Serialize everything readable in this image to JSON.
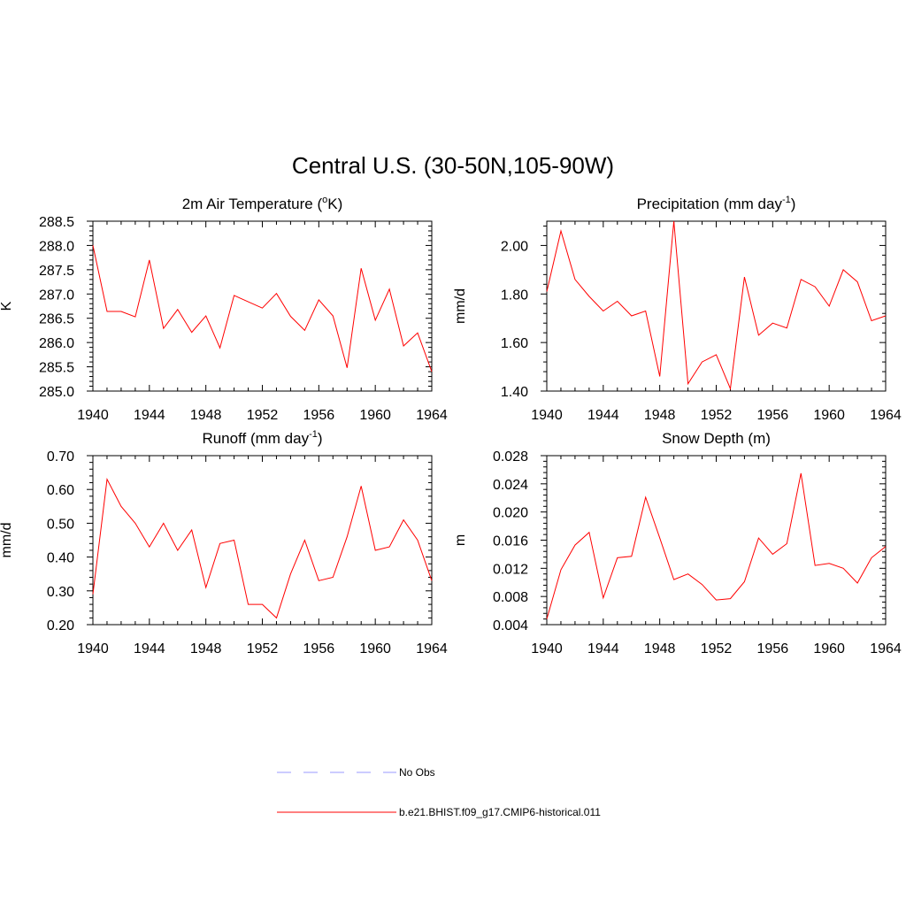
{
  "figure": {
    "title": "Central U.S. (30-50N,105-90W)"
  },
  "legend": {
    "entries": [
      {
        "label": "No Obs",
        "color": "#9999ff",
        "style": "dashed"
      },
      {
        "label": "b.e21.BHIST.f09_g17.CMIP6-historical.011",
        "color": "#ff0000",
        "style": "solid"
      }
    ]
  },
  "chart_data": [
    {
      "type": "line",
      "title": "2m Air Temperature (",
      "title_sup": "o",
      "title_tail": "K)",
      "ylabel": "K",
      "xlim": [
        1940,
        1964
      ],
      "ylim": [
        285.0,
        288.5
      ],
      "xticks": [
        "1940",
        "1944",
        "1948",
        "1952",
        "1956",
        "1960",
        "1964"
      ],
      "yticks": [
        "285.0",
        "285.5",
        "286.0",
        "286.5",
        "287.0",
        "287.5",
        "288.0",
        "288.5"
      ],
      "series": [
        {
          "color": "#ff0000",
          "x": [
            1940,
            1941,
            1942,
            1943,
            1944,
            1945,
            1946,
            1947,
            1948,
            1949,
            1950,
            1951,
            1952,
            1953,
            1954,
            1955,
            1956,
            1957,
            1958,
            1959,
            1960,
            1961,
            1962,
            1963,
            1964
          ],
          "values": [
            288.0,
            286.64,
            286.64,
            286.53,
            287.7,
            286.29,
            286.68,
            286.21,
            286.55,
            285.89,
            286.97,
            286.84,
            286.71,
            287.01,
            286.54,
            286.25,
            286.88,
            286.55,
            285.48,
            287.53,
            286.46,
            287.1,
            285.93,
            286.2,
            285.4
          ]
        }
      ]
    },
    {
      "type": "line",
      "title": "Precipitation (mm day",
      "title_sup": "-1",
      "title_tail": ")",
      "ylabel": "mm/d",
      "xlim": [
        1940,
        1964
      ],
      "ylim": [
        1.4,
        2.1
      ],
      "xticks": [
        "1940",
        "1944",
        "1948",
        "1952",
        "1956",
        "1960",
        "1964"
      ],
      "yticks": [
        "1.40",
        "1.60",
        "1.80",
        "2.00"
      ],
      "series": [
        {
          "color": "#ff0000",
          "x": [
            1940,
            1941,
            1942,
            1943,
            1944,
            1945,
            1946,
            1947,
            1948,
            1949,
            1950,
            1951,
            1952,
            1953,
            1954,
            1955,
            1956,
            1957,
            1958,
            1959,
            1960,
            1961,
            1962,
            1963,
            1964
          ],
          "values": [
            1.81,
            2.06,
            1.86,
            1.79,
            1.73,
            1.77,
            1.71,
            1.73,
            1.46,
            2.1,
            1.43,
            1.52,
            1.55,
            1.41,
            1.87,
            1.63,
            1.68,
            1.66,
            1.86,
            1.83,
            1.75,
            1.9,
            1.85,
            1.69,
            1.71
          ]
        }
      ]
    },
    {
      "type": "line",
      "title": "Runoff (mm day",
      "title_sup": "-1",
      "title_tail": ")",
      "ylabel": "mm/d",
      "xlim": [
        1940,
        1964
      ],
      "ylim": [
        0.2,
        0.7
      ],
      "xticks": [
        "1940",
        "1944",
        "1948",
        "1952",
        "1956",
        "1960",
        "1964"
      ],
      "yticks": [
        "0.20",
        "0.30",
        "0.40",
        "0.50",
        "0.60",
        "0.70"
      ],
      "series": [
        {
          "color": "#ff0000",
          "x": [
            1940,
            1941,
            1942,
            1943,
            1944,
            1945,
            1946,
            1947,
            1948,
            1949,
            1950,
            1951,
            1952,
            1953,
            1954,
            1955,
            1956,
            1957,
            1958,
            1959,
            1960,
            1961,
            1962,
            1963,
            1964
          ],
          "values": [
            0.29,
            0.63,
            0.55,
            0.5,
            0.43,
            0.5,
            0.42,
            0.48,
            0.31,
            0.44,
            0.45,
            0.26,
            0.26,
            0.22,
            0.35,
            0.45,
            0.33,
            0.34,
            0.46,
            0.61,
            0.42,
            0.43,
            0.51,
            0.45,
            0.33
          ]
        }
      ]
    },
    {
      "type": "line",
      "title": "Snow Depth (m)",
      "title_sup": "",
      "title_tail": "",
      "ylabel": "m",
      "xlim": [
        1940,
        1964
      ],
      "ylim": [
        0.004,
        0.028
      ],
      "xticks": [
        "1940",
        "1944",
        "1948",
        "1952",
        "1956",
        "1960",
        "1964"
      ],
      "yticks": [
        "0.004",
        "0.008",
        "0.012",
        "0.016",
        "0.020",
        "0.024",
        "0.028"
      ],
      "series": [
        {
          "color": "#ff0000",
          "x": [
            1940,
            1941,
            1942,
            1943,
            1944,
            1945,
            1946,
            1947,
            1948,
            1949,
            1950,
            1951,
            1952,
            1953,
            1954,
            1955,
            1956,
            1957,
            1958,
            1959,
            1960,
            1961,
            1962,
            1963,
            1964
          ],
          "values": [
            0.0048,
            0.0118,
            0.0153,
            0.0171,
            0.0078,
            0.0135,
            0.0137,
            0.0221,
            0.0163,
            0.0104,
            0.0112,
            0.0097,
            0.0075,
            0.0077,
            0.0101,
            0.0163,
            0.014,
            0.0155,
            0.0255,
            0.0124,
            0.0127,
            0.012,
            0.0099,
            0.0135,
            0.0151
          ]
        }
      ]
    }
  ]
}
